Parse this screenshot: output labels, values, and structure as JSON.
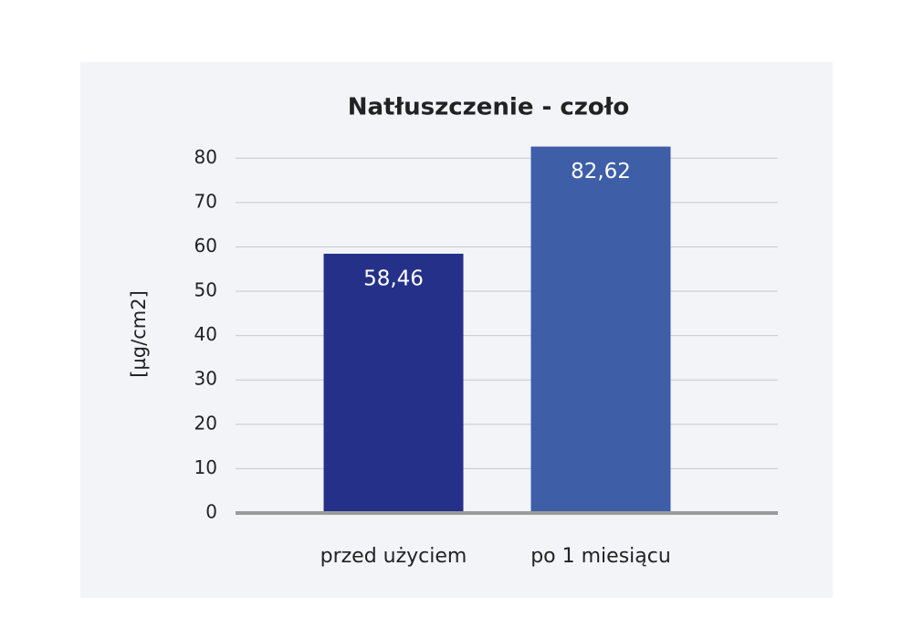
{
  "chart_data": {
    "type": "bar",
    "title": "Natłuszczenie - czoło",
    "y_label": "[µg/cm2]",
    "categories": [
      "przed użyciem",
      "po 1 miesiącu"
    ],
    "values": [
      58.46,
      82.62
    ],
    "value_labels": [
      "58,46",
      "82,62"
    ],
    "colors": [
      "#253188",
      "#3e5ea8"
    ],
    "ylim": [
      0,
      85
    ],
    "yticks": [
      0,
      10,
      20,
      30,
      40,
      50,
      60,
      70,
      80
    ],
    "grid": true
  }
}
